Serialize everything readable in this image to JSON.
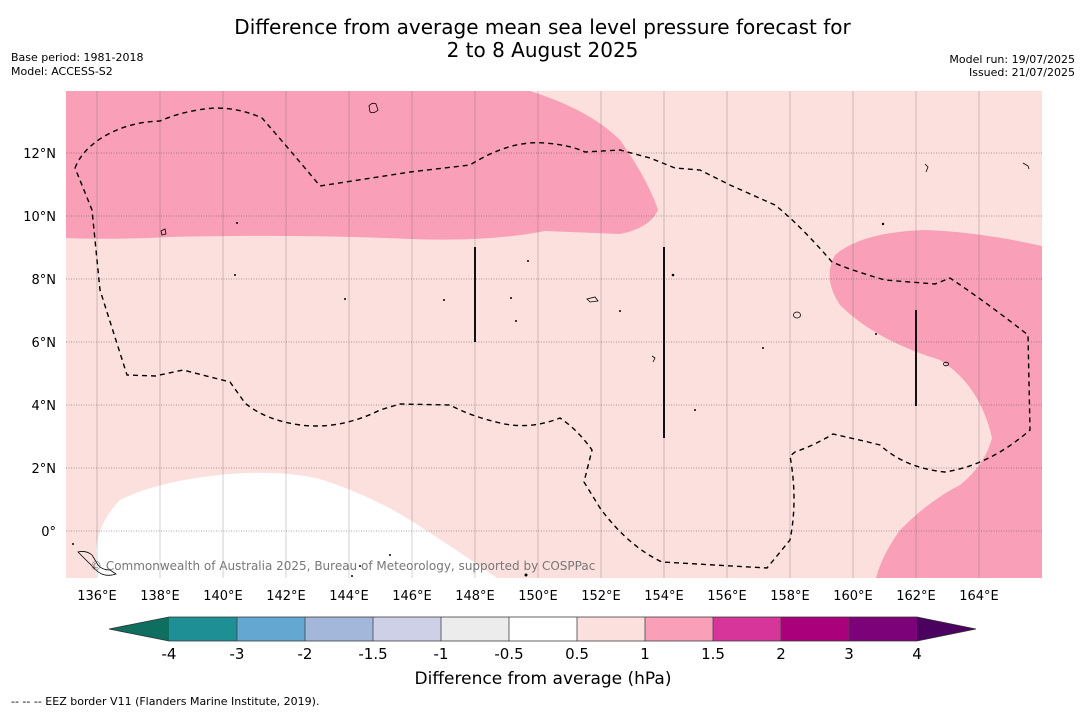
{
  "header": {
    "title_line1": "Difference from average mean sea level pressure forecast for",
    "title_line2": "2 to 8 August 2025",
    "base_period": "Base period: 1981-2018",
    "model": "Model: ACCESS-S2",
    "model_run": "Model run: 19/07/2025",
    "issued": "Issued: 21/07/2025"
  },
  "map": {
    "lat_labels": [
      "12°N",
      "10°N",
      "8°N",
      "6°N",
      "4°N",
      "2°N",
      "0°"
    ],
    "lon_labels": [
      "136°E",
      "138°E",
      "140°E",
      "142°E",
      "144°E",
      "146°E",
      "148°E",
      "150°E",
      "152°E",
      "154°E",
      "156°E",
      "158°E",
      "160°E",
      "162°E",
      "164°E"
    ],
    "copyright": "© Commonwealth of Australia 2025, Bureau of Meteorology, supported by COSPPac",
    "colors": {
      "band_0_5_to_1": "#fce0de",
      "band_1_to_1_5": "#f9a0b8",
      "band_m0_5_to_0_5": "#ffffff"
    }
  },
  "colorbar": {
    "ticks": [
      "-4",
      "-3",
      "-2",
      "-1.5",
      "-1",
      "-0.5",
      "0.5",
      "1",
      "1.5",
      "2",
      "3",
      "4"
    ],
    "colors": [
      "#1f8f96",
      "#64a8d2",
      "#a3b7da",
      "#cdd0e7",
      "#ececec",
      "#ffffff",
      "#fce0de",
      "#f9a0b8",
      "#d8359a",
      "#ab007c",
      "#7b0278"
    ],
    "under_color": "#0e6e5f",
    "over_color": "#4b0160",
    "label": "Difference from average (hPa)"
  },
  "footnote": "--  --  -- EEZ border V11 (Flanders Marine Institute, 2019)."
}
